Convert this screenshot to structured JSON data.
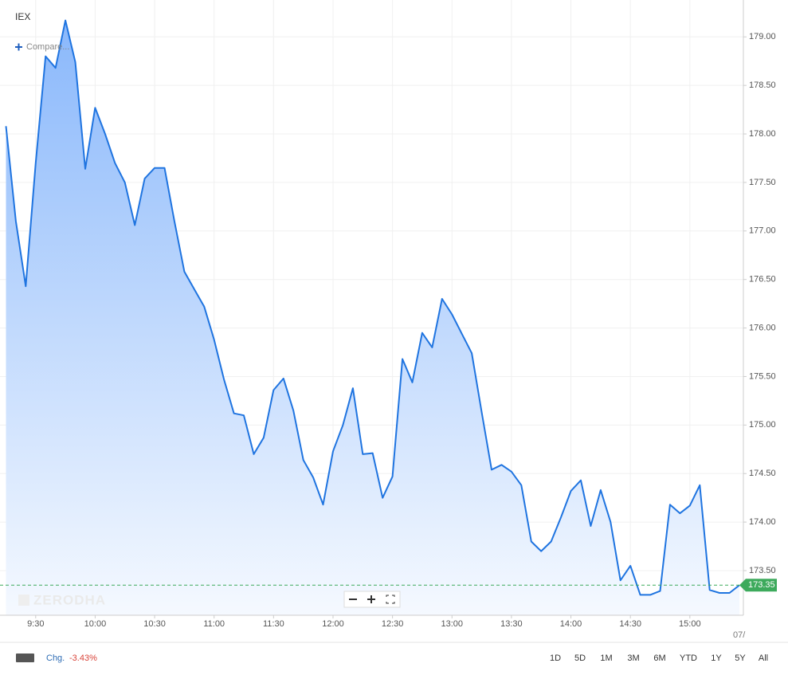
{
  "ui": {
    "symbol": "IEX",
    "compare": "Compare...",
    "watermark": "ZERODHA",
    "date_edge": "07/",
    "change_label": "Chg.",
    "change_value": "-3.43%",
    "ranges": [
      "1D",
      "5D",
      "1M",
      "3M",
      "6M",
      "YTD",
      "1Y",
      "5Y",
      "All"
    ]
  },
  "chart_data": {
    "type": "area",
    "color": "#1f74e0",
    "grid": true,
    "x": [
      "9:15",
      "9:20",
      "9:25",
      "9:30",
      "9:35",
      "9:40",
      "9:45",
      "9:50",
      "9:55",
      "10:00",
      "10:05",
      "10:10",
      "10:15",
      "10:20",
      "10:25",
      "10:30",
      "10:35",
      "10:40",
      "10:45",
      "10:50",
      "10:55",
      "11:00",
      "11:05",
      "11:10",
      "11:15",
      "11:20",
      "11:25",
      "11:30",
      "11:35",
      "11:40",
      "11:45",
      "11:50",
      "11:55",
      "12:00",
      "12:05",
      "12:10",
      "12:15",
      "12:20",
      "12:25",
      "12:30",
      "12:35",
      "12:40",
      "12:45",
      "12:50",
      "12:55",
      "13:00",
      "13:05",
      "13:10",
      "13:15",
      "13:20",
      "13:25",
      "13:30",
      "13:35",
      "13:40",
      "13:45",
      "13:50",
      "13:55",
      "14:00",
      "14:05",
      "14:10",
      "14:15",
      "14:20",
      "14:25",
      "14:30",
      "14:35",
      "14:40",
      "14:45",
      "14:50",
      "14:55",
      "15:00",
      "15:05",
      "15:10",
      "15:15",
      "15:20",
      "15:25"
    ],
    "values": [
      178.08,
      177.1,
      176.43,
      177.7,
      178.8,
      178.68,
      179.17,
      178.74,
      177.64,
      178.27,
      178.0,
      177.7,
      177.5,
      177.06,
      177.54,
      177.65,
      177.65,
      177.1,
      176.58,
      176.4,
      176.22,
      175.88,
      175.47,
      175.12,
      175.1,
      174.7,
      174.87,
      175.36,
      175.48,
      175.15,
      174.64,
      174.46,
      174.18,
      174.73,
      175.0,
      175.38,
      174.7,
      174.71,
      174.25,
      174.47,
      175.68,
      175.44,
      175.95,
      175.8,
      176.3,
      176.14,
      175.94,
      175.74,
      175.13,
      174.54,
      174.59,
      174.52,
      174.38,
      173.8,
      173.7,
      173.8,
      174.05,
      174.32,
      174.43,
      173.96,
      174.33,
      174.0,
      173.4,
      173.55,
      173.25,
      173.25,
      173.29,
      174.18,
      174.09,
      174.17,
      174.38,
      173.3,
      173.27,
      173.27,
      173.35
    ],
    "xlim": [
      "9:12",
      "15:27"
    ],
    "xticks": [
      "9:30",
      "10:00",
      "10:30",
      "11:00",
      "11:30",
      "12:00",
      "12:30",
      "13:00",
      "13:30",
      "14:00",
      "14:30",
      "15:00"
    ],
    "ylim": [
      173.04,
      179.38
    ],
    "yticks": [
      {
        "value": 173.5,
        "label": "173.50"
      },
      {
        "value": 174,
        "label": "174.00"
      },
      {
        "value": 174.5,
        "label": "174.50"
      },
      {
        "value": 175,
        "label": "175.00"
      },
      {
        "value": 175.5,
        "label": "175.50"
      },
      {
        "value": 176,
        "label": "176.00"
      },
      {
        "value": 176.5,
        "label": "176.50"
      },
      {
        "value": 177,
        "label": "177.00"
      },
      {
        "value": 177.5,
        "label": "177.50"
      },
      {
        "value": 178,
        "label": "178.00"
      },
      {
        "value": 178.5,
        "label": "178.50"
      },
      {
        "value": 179,
        "label": "179.00"
      }
    ],
    "current_price": {
      "value": 173.35,
      "label": "173.35",
      "color": "#3daa5c"
    }
  }
}
